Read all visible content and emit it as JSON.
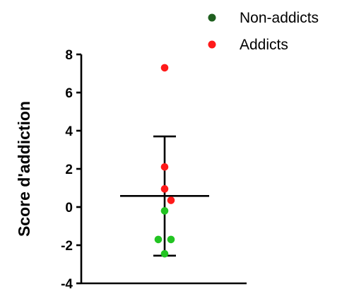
{
  "chart_data": {
    "type": "scatter",
    "ylabel": "Score d'addiction",
    "xlabel": "",
    "ylim": [
      -4,
      8
    ],
    "yticks": [
      "8",
      "6",
      "4",
      "2",
      "0",
      "-2",
      "-4"
    ],
    "legend_position": "top-right",
    "grid": false,
    "series": [
      {
        "name": "Non-addicts",
        "color": "#1f5f1f",
        "point_color": "#22c422",
        "points": [
          {
            "x": 0,
            "y": -0.2
          },
          {
            "x": -1,
            "y": -1.7
          },
          {
            "x": 1,
            "y": -1.7
          },
          {
            "x": 0,
            "y": -2.45
          }
        ]
      },
      {
        "name": "Addicts",
        "color": "#ff1a1a",
        "points": [
          {
            "x": 0,
            "y": 7.3
          },
          {
            "x": 0,
            "y": 2.1
          },
          {
            "x": 0,
            "y": 0.95
          },
          {
            "x": 1,
            "y": 0.35
          }
        ]
      }
    ],
    "summary": {
      "mean": 0.58,
      "upper": 3.7,
      "lower": -2.55
    }
  }
}
